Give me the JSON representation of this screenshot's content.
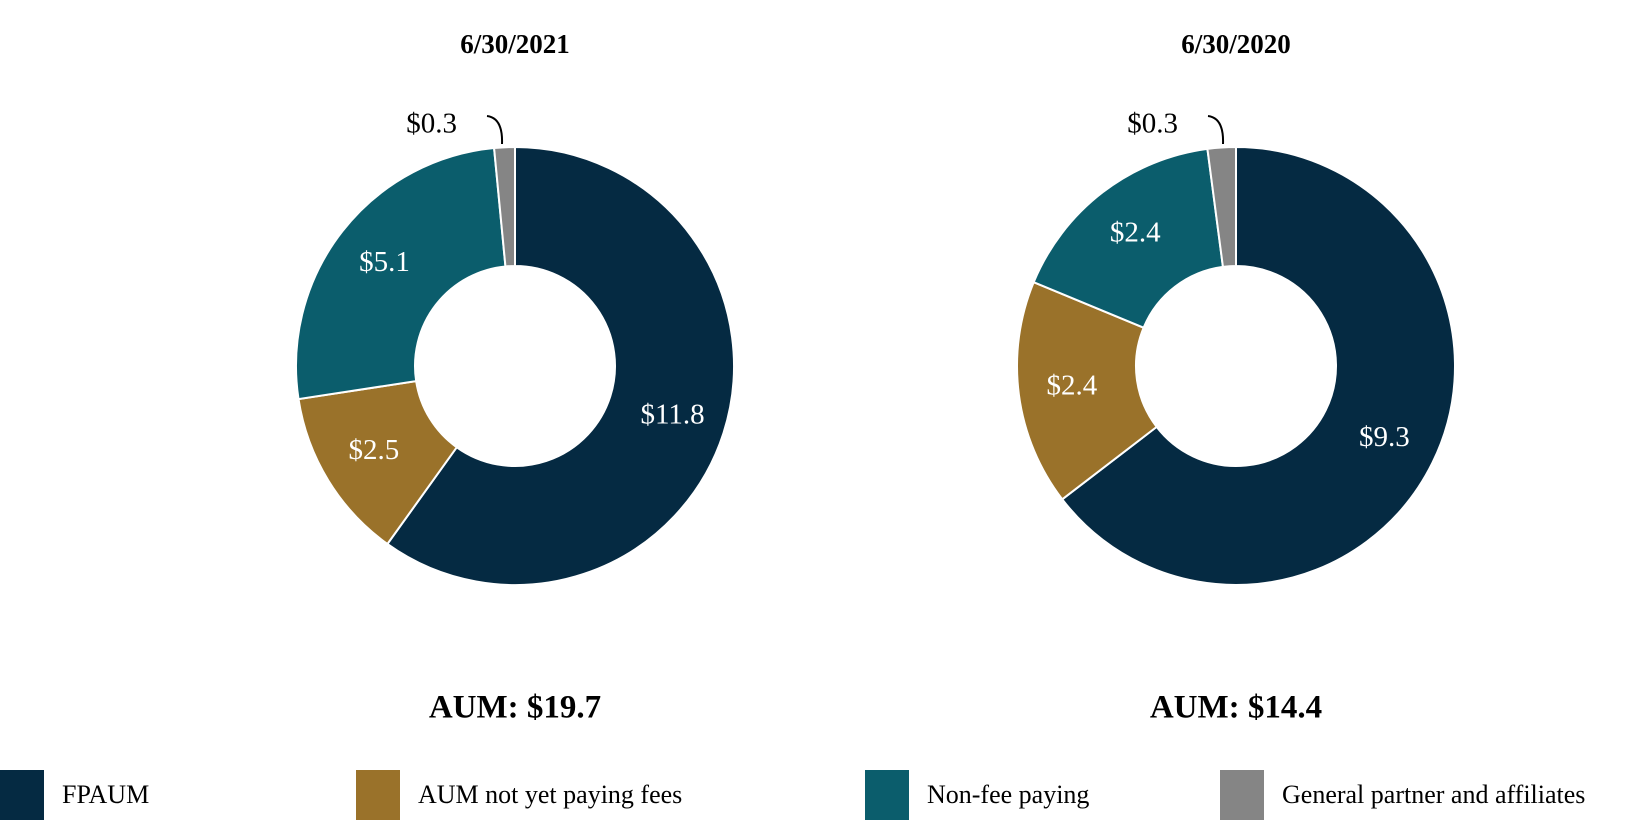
{
  "chart_data": [
    {
      "type": "pie",
      "title": "6/30/2021",
      "values": [
        11.8,
        2.5,
        5.1,
        0.3
      ],
      "value_labels": [
        "$11.8",
        "$2.5",
        "$5.1",
        "$0.3"
      ],
      "total_label": "AUM: $19.7"
    },
    {
      "type": "pie",
      "title": "6/30/2020",
      "values": [
        9.3,
        2.4,
        2.4,
        0.3
      ],
      "value_labels": [
        "$9.3",
        "$2.4",
        "$2.4",
        "$0.3"
      ],
      "total_label": "AUM: $14.4"
    }
  ],
  "legend": {
    "labels": [
      "FPAUM",
      "AUM not yet paying fees",
      "Non-fee paying",
      "General partner and affiliates"
    ],
    "colors": [
      "#052a42",
      "#9a722a",
      "#0b5d6c",
      "#858585"
    ]
  }
}
